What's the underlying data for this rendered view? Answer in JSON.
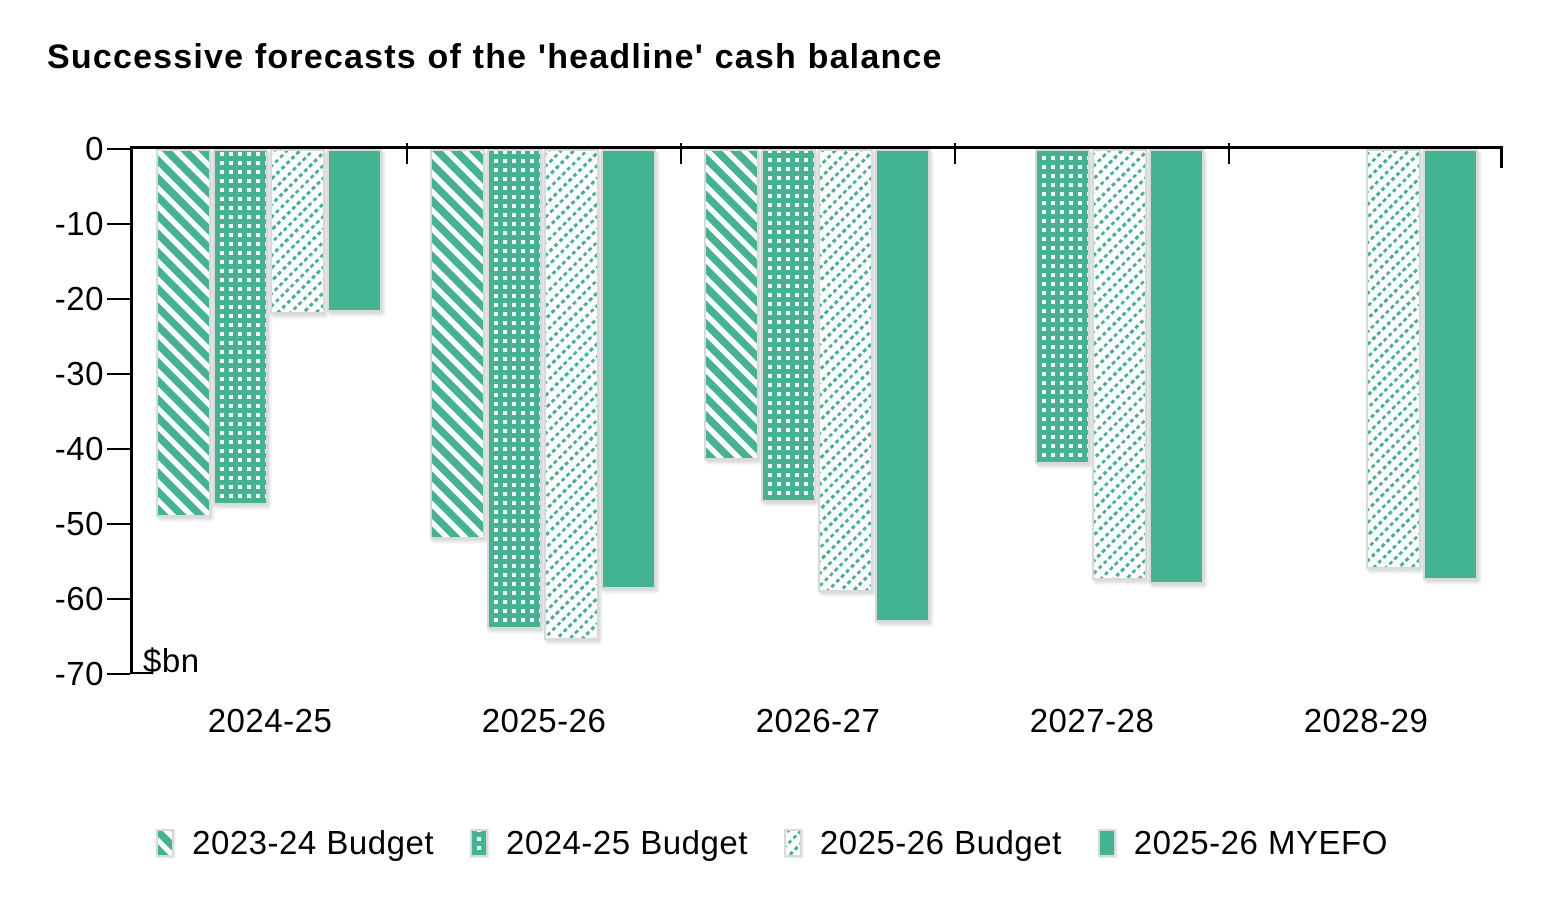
{
  "title": "Successive forecasts of the 'headline' cash balance",
  "y_axis": {
    "unit_label": "$bn",
    "ticks": [
      0,
      -10,
      -20,
      -30,
      -40,
      -50,
      -60,
      -70
    ],
    "tick_labels": [
      "0",
      "-10",
      "-20",
      "-30",
      "-40",
      "-50",
      "-60",
      "-70"
    ]
  },
  "x_axis": {
    "categories": [
      "2024-25",
      "2025-26",
      "2026-27",
      "2027-28",
      "2028-29"
    ]
  },
  "legend": [
    {
      "label": "2023-24 Budget",
      "pattern": "diagonal-heavy"
    },
    {
      "label": "2024-25 Budget",
      "pattern": "dotted-grid"
    },
    {
      "label": "2025-26 Budget",
      "pattern": "diagonal-light"
    },
    {
      "label": "2025-26 MYEFO",
      "pattern": "solid"
    }
  ],
  "colors": {
    "teal": "#42b493",
    "bar_border": "#d9d9d9",
    "axis": "#000000",
    "text": "#000000"
  },
  "chart_data": {
    "type": "bar",
    "categories": [
      "2024-25",
      "2025-26",
      "2026-27",
      "2027-28",
      "2028-29"
    ],
    "series": [
      {
        "name": "2023-24 Budget",
        "pattern": "diagonal-heavy",
        "values": [
          -49.0,
          -52.0,
          -41.5,
          null,
          null
        ]
      },
      {
        "name": "2024-25 Budget",
        "pattern": "dotted-grid",
        "values": [
          -47.5,
          -64.0,
          -47.0,
          -42.0,
          null
        ]
      },
      {
        "name": "2025-26 Budget",
        "pattern": "diagonal-light",
        "values": [
          -22.0,
          -65.5,
          -59.0,
          -57.5,
          -56.0
        ]
      },
      {
        "name": "2025-26 MYEFO",
        "pattern": "solid",
        "values": [
          -21.7,
          -58.7,
          -63.0,
          -58.0,
          -57.5
        ]
      }
    ],
    "title": "Successive forecasts of the 'headline' cash balance",
    "xlabel": "",
    "ylabel": "$bn",
    "ylim": [
      -70,
      0
    ],
    "grid": false,
    "legend_position": "bottom"
  }
}
